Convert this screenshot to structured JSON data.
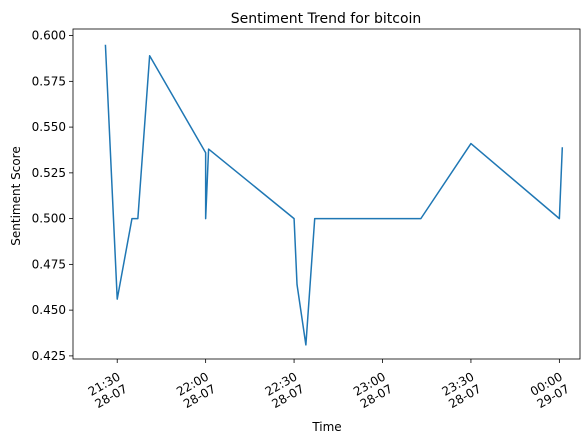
{
  "chart_data": {
    "type": "line",
    "title": "Sentiment Trend for bitcoin",
    "xlabel": "Time",
    "ylabel": "Sentiment Score",
    "x_tick_labels": [
      {
        "time": "2024-07-28 21:30",
        "line1": "21:30",
        "line2": "28-07"
      },
      {
        "time": "2024-07-28 22:00",
        "line1": "22:00",
        "line2": "28-07"
      },
      {
        "time": "2024-07-28 22:30",
        "line1": "22:30",
        "line2": "28-07"
      },
      {
        "time": "2024-07-28 23:00",
        "line1": "23:00",
        "line2": "28-07"
      },
      {
        "time": "2024-07-28 23:30",
        "line1": "23:30",
        "line2": "28-07"
      },
      {
        "time": "2024-07-29 00:00",
        "line1": "00:00",
        "line2": "29-07"
      }
    ],
    "y_ticks": [
      "0.425",
      "0.450",
      "0.475",
      "0.500",
      "0.525",
      "0.550",
      "0.575",
      "0.600"
    ],
    "xlim": [
      "2024-07-28 21:15",
      "2024-07-29 00:07"
    ],
    "ylim": [
      0.4233,
      0.6036
    ],
    "grid": false,
    "color": "#1f77b4",
    "series": [
      {
        "points": [
          {
            "x": "2024-07-28 21:26",
            "y": 0.595
          },
          {
            "x": "2024-07-28 21:30",
            "y": 0.456
          },
          {
            "x": "2024-07-28 21:35",
            "y": 0.5
          },
          {
            "x": "2024-07-28 21:37",
            "y": 0.5
          },
          {
            "x": "2024-07-28 21:41",
            "y": 0.589
          },
          {
            "x": "2024-07-28 22:00",
            "y": 0.536
          },
          {
            "x": "2024-07-28 22:00",
            "y": 0.5
          },
          {
            "x": "2024-07-28 22:01",
            "y": 0.538
          },
          {
            "x": "2024-07-28 22:30",
            "y": 0.5
          },
          {
            "x": "2024-07-28 22:31",
            "y": 0.464
          },
          {
            "x": "2024-07-28 22:34",
            "y": 0.431
          },
          {
            "x": "2024-07-28 22:37",
            "y": 0.5
          },
          {
            "x": "2024-07-28 23:13",
            "y": 0.5
          },
          {
            "x": "2024-07-28 23:30",
            "y": 0.541
          },
          {
            "x": "2024-07-29 00:00",
            "y": 0.5
          },
          {
            "x": "2024-07-29 00:01",
            "y": 0.539
          }
        ]
      }
    ]
  }
}
